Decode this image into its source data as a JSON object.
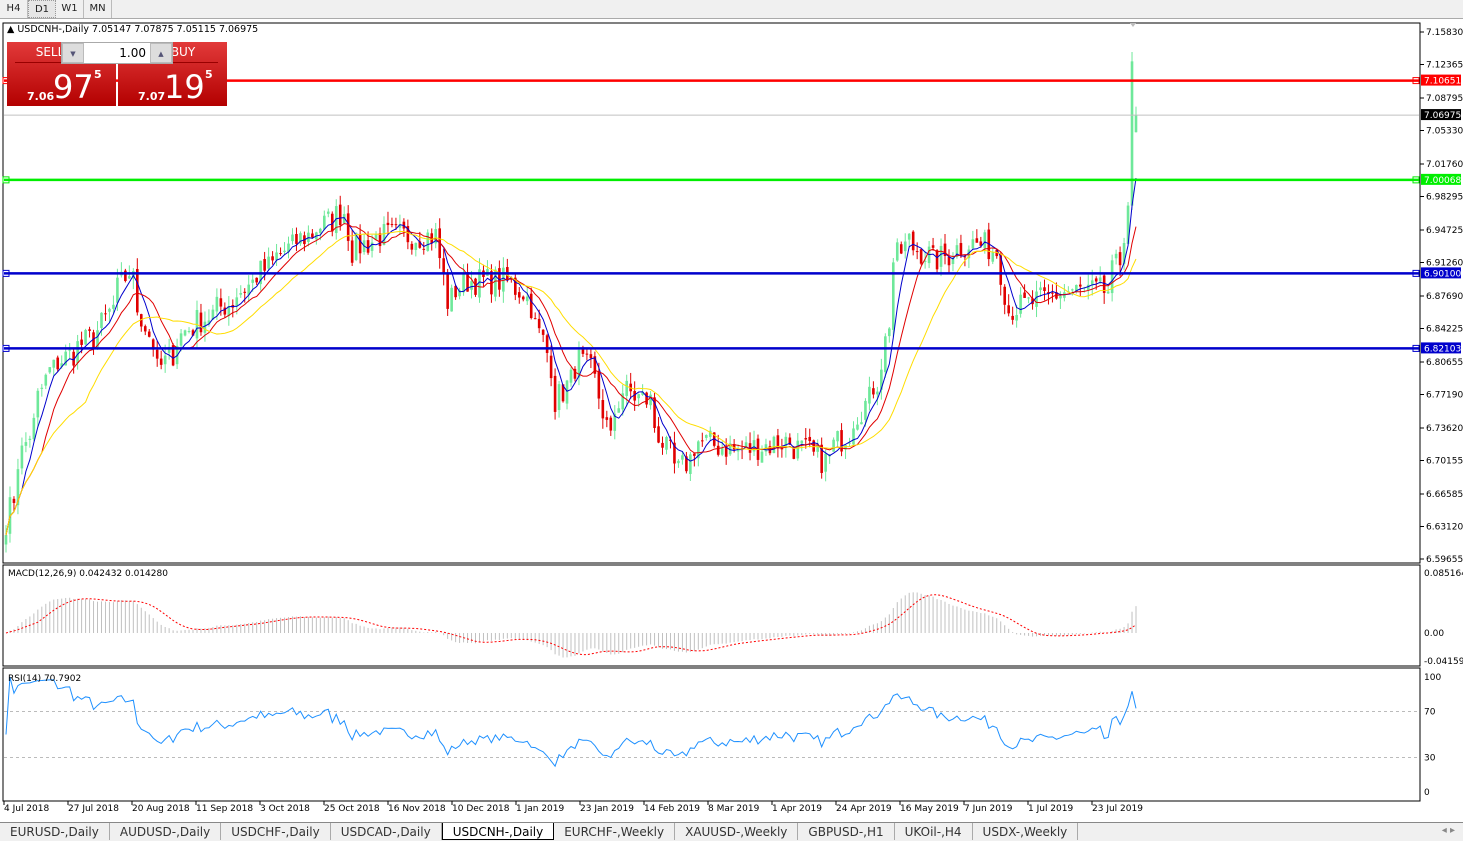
{
  "timeframes": [
    {
      "label": "H4",
      "active": false
    },
    {
      "label": "D1",
      "active": true
    },
    {
      "label": "W1",
      "active": false
    },
    {
      "label": "MN",
      "active": false
    }
  ],
  "chart": {
    "title": "USDCNH-,Daily  7.05147 7.07875 7.05115 7.06975",
    "symbol": "USDCNH-",
    "period": "Daily",
    "open": 7.05147,
    "high": 7.07875,
    "low": 7.05115,
    "close": 7.06975
  },
  "trade": {
    "sell_label": "SELL",
    "buy_label": "BUY",
    "lot": "1.00",
    "sell_prefix": "7.06",
    "sell_big": "97",
    "sell_sup": "5",
    "buy_prefix": "7.07",
    "buy_big": "19",
    "buy_sup": "5"
  },
  "price_axis": {
    "min": 6.59655,
    "max": 7.1583,
    "ticks": [
      "7.15830",
      "7.12365",
      "7.08795",
      "7.05330",
      "7.01760",
      "6.98295",
      "6.94725",
      "6.91260",
      "6.87690",
      "6.84225",
      "6.80655",
      "6.77190",
      "6.73620",
      "6.70155",
      "6.66585",
      "6.63120",
      "6.59655"
    ]
  },
  "current_price": {
    "value": 7.06975,
    "label": "7.06975",
    "color": "#000000"
  },
  "hlines": [
    {
      "value": 7.10651,
      "label": "7.10651",
      "color": "#ff0000"
    },
    {
      "value": 7.00068,
      "label": "7.00068",
      "color": "#00ee00"
    },
    {
      "value": 6.901,
      "label": "6.90100",
      "color": "#0000cc"
    },
    {
      "value": 6.82103,
      "label": "6.82103",
      "color": "#0000cc"
    }
  ],
  "colors": {
    "bull": "#6ee89a",
    "bear": "#e00000",
    "ma_fast": "#0000cc",
    "ma_mid": "#e00000",
    "ma_slow": "#ffdd00",
    "macd_hist": "#c0c0c0",
    "macd_signal": "#ff0000",
    "rsi": "#1e90ff"
  },
  "chart_data": {
    "type": "candlestick",
    "approx_close_path": [
      [
        "2018-07-04",
        6.637
      ],
      [
        "2018-07-09",
        6.701
      ],
      [
        "2018-07-19",
        6.797
      ],
      [
        "2018-08-06",
        6.84
      ],
      [
        "2018-08-16",
        6.903
      ],
      [
        "2018-08-27",
        6.797
      ],
      [
        "2018-09-05",
        6.84
      ],
      [
        "2018-09-21",
        6.871
      ],
      [
        "2018-10-10",
        6.925
      ],
      [
        "2018-10-20",
        6.946
      ],
      [
        "2018-10-31",
        6.967
      ],
      [
        "2018-11-02",
        6.925
      ],
      [
        "2018-11-13",
        6.941
      ],
      [
        "2018-12-03",
        6.941
      ],
      [
        "2018-12-06",
        6.871
      ],
      [
        "2018-12-13",
        6.893
      ],
      [
        "2018-12-26",
        6.893
      ],
      [
        "2019-01-02",
        6.882
      ],
      [
        "2019-01-09",
        6.829
      ],
      [
        "2019-01-14",
        6.765
      ],
      [
        "2019-01-22",
        6.808
      ],
      [
        "2019-01-28",
        6.786
      ],
      [
        "2019-02-01",
        6.722
      ],
      [
        "2019-02-06",
        6.776
      ],
      [
        "2019-02-15",
        6.765
      ],
      [
        "2019-02-21",
        6.712
      ],
      [
        "2019-02-26",
        6.69
      ],
      [
        "2019-03-05",
        6.722
      ],
      [
        "2019-03-19",
        6.712
      ],
      [
        "2019-04-04",
        6.722
      ],
      [
        "2019-04-18",
        6.701
      ],
      [
        "2019-04-26",
        6.733
      ],
      [
        "2019-05-07",
        6.786
      ],
      [
        "2019-05-13",
        6.914
      ],
      [
        "2019-05-17",
        6.935
      ],
      [
        "2019-05-27",
        6.914
      ],
      [
        "2019-06-08",
        6.935
      ],
      [
        "2019-06-18",
        6.925
      ],
      [
        "2019-06-21",
        6.861
      ],
      [
        "2019-07-02",
        6.871
      ],
      [
        "2019-07-12",
        6.882
      ],
      [
        "2019-07-26",
        6.882
      ],
      [
        "2019-07-31",
        6.914
      ],
      [
        "2019-08-02",
        6.978
      ],
      [
        "2019-08-05",
        7.127
      ],
      [
        "2019-08-06",
        7.06975
      ]
    ],
    "x_ticks": [
      "4 Jul 2018",
      "27 Jul 2018",
      "20 Aug 2018",
      "11 Sep 2018",
      "3 Oct 2018",
      "25 Oct 2018",
      "16 Nov 2018",
      "10 Dec 2018",
      "1 Jan 2019",
      "23 Jan 2019",
      "14 Feb 2019",
      "8 Mar 2019",
      "1 Apr 2019",
      "24 Apr 2019",
      "16 May 2019",
      "7 Jun 2019",
      "1 Jul 2019",
      "23 Jul 2019"
    ]
  },
  "macd": {
    "label": "MACD(12,26,9) 0.042432 0.014280",
    "ticks": [
      "0.085164",
      "0.00",
      "-0.041597"
    ],
    "max": 0.085164,
    "min": -0.041597
  },
  "rsi": {
    "label": "RSI(14) 70.7902",
    "ticks": [
      "100",
      "70",
      "30",
      "0"
    ]
  },
  "tabs": [
    {
      "label": "EURUSD-,Daily",
      "active": false
    },
    {
      "label": "AUDUSD-,Daily",
      "active": false
    },
    {
      "label": "USDCHF-,Daily",
      "active": false
    },
    {
      "label": "USDCAD-,Daily",
      "active": false
    },
    {
      "label": "USDCNH-,Daily",
      "active": true
    },
    {
      "label": "EURCHF-,Weekly",
      "active": false
    },
    {
      "label": "XAUUSD-,Weekly",
      "active": false
    },
    {
      "label": "GBPUSD-,H1",
      "active": false
    },
    {
      "label": "UKOil-,H4",
      "active": false
    },
    {
      "label": "USDX-,Weekly",
      "active": false
    }
  ]
}
